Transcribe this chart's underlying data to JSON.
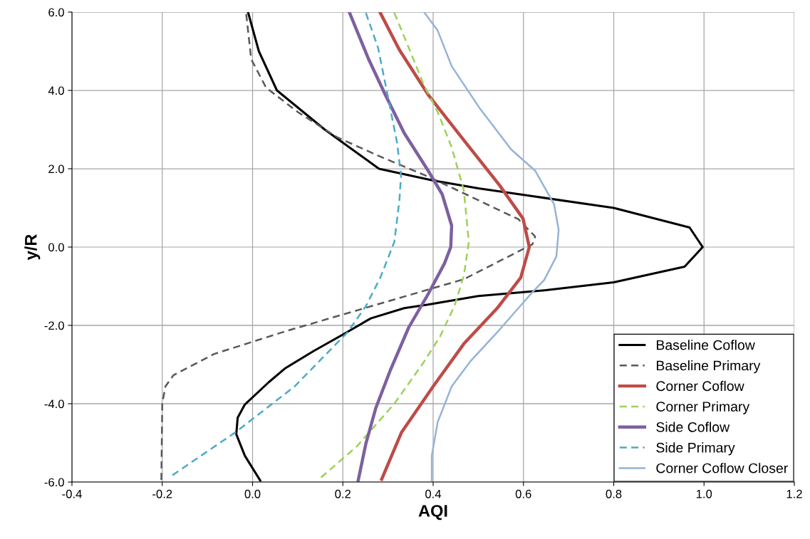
{
  "chart_data": {
    "type": "line",
    "xlabel": "AQI",
    "ylabel": "y/R",
    "xlim": [
      -0.4,
      1.2
    ],
    "ylim": [
      -6.0,
      6.0
    ],
    "xticks": [
      {
        "value": -0.4,
        "label": "-0.4"
      },
      {
        "value": -0.2,
        "label": "-0.2"
      },
      {
        "value": 0,
        "label": "0.0"
      },
      {
        "value": 0.2,
        "label": "0.2"
      },
      {
        "value": 0.4,
        "label": "0.4"
      },
      {
        "value": 0.6,
        "label": "0.6"
      },
      {
        "value": 0.8,
        "label": "0.8"
      },
      {
        "value": 1.0,
        "label": "1.0"
      },
      {
        "value": 1.2,
        "label": "1.2"
      }
    ],
    "yticks": [
      {
        "value": -6,
        "label": "-6.0"
      },
      {
        "value": -4,
        "label": "-4.0"
      },
      {
        "value": -2,
        "label": "-2.0"
      },
      {
        "value": 0,
        "label": "0.0"
      },
      {
        "value": 2,
        "label": "2.0"
      },
      {
        "value": 4,
        "label": "4.0"
      },
      {
        "value": 6,
        "label": "6.0"
      }
    ],
    "grid": true,
    "legend": "bottom right",
    "marker": "none",
    "series": [
      {
        "name": "Baseline Coflow",
        "color": "#000000",
        "line_style": "solid",
        "x": [
          -0.01,
          0.014,
          0.054,
          0.16,
          0.28,
          0.4,
          0.5,
          0.62,
          0.8,
          0.968,
          0.997,
          0.957,
          0.8,
          0.65,
          0.5,
          0.389,
          0.336,
          0.262,
          0.199,
          0.136,
          0.073,
          0.036,
          -0.017,
          -0.033,
          -0.036,
          -0.017,
          0.017
        ],
        "values": [
          6.0,
          5.0,
          4.0,
          3.0,
          2.0,
          1.7,
          1.5,
          1.3,
          1.0,
          0.5,
          0.0,
          -0.5,
          -0.9,
          -1.1,
          -1.25,
          -1.47,
          -1.56,
          -1.82,
          -2.24,
          -2.65,
          -3.09,
          -3.45,
          -4.02,
          -4.36,
          -4.78,
          -5.33,
          -5.96
        ]
      },
      {
        "name": "Baseline Primary",
        "color": "#595959",
        "line_style": "dashed",
        "x": [
          -0.014,
          -0.003,
          0.03,
          0.1,
          0.188,
          0.283,
          0.389,
          0.472,
          0.589,
          0.626,
          0.62,
          0.468,
          0.251,
          0.073,
          -0.085,
          -0.175,
          -0.193,
          -0.2,
          -0.202
        ],
        "values": [
          5.95,
          4.8,
          4.07,
          3.45,
          2.8,
          2.31,
          1.8,
          1.35,
          0.71,
          0.27,
          0.07,
          -0.82,
          -1.55,
          -2.15,
          -2.73,
          -3.27,
          -3.56,
          -4.0,
          -5.96
        ]
      },
      {
        "name": "Corner Coflow",
        "color": "#be4b48",
        "line_style": "solid",
        "x": [
          0.283,
          0.325,
          0.389,
          0.468,
          0.547,
          0.599,
          0.613,
          0.594,
          0.542,
          0.468,
          0.4,
          0.33,
          0.286
        ],
        "values": [
          5.98,
          5.04,
          3.89,
          2.73,
          1.58,
          0.73,
          0.0,
          -0.78,
          -1.56,
          -2.47,
          -3.56,
          -4.73,
          -5.93
        ]
      },
      {
        "name": "Corner Primary",
        "color": "#9bd25a",
        "line_style": "dashed",
        "x": [
          0.314,
          0.346,
          0.378,
          0.41,
          0.441,
          0.468,
          0.479,
          0.468,
          0.447,
          0.415,
          0.378,
          0.314,
          0.231,
          0.147
        ],
        "values": [
          5.98,
          5.09,
          4.18,
          3.45,
          2.55,
          1.45,
          0.13,
          -0.73,
          -1.51,
          -2.29,
          -2.96,
          -4.0,
          -5.09,
          -5.93
        ]
      },
      {
        "name": "Side Coflow",
        "color": "#7d60a0",
        "line_style": "solid",
        "x": [
          0.215,
          0.257,
          0.294,
          0.336,
          0.389,
          0.42,
          0.441,
          0.439,
          0.425,
          0.389,
          0.346,
          0.305,
          0.273,
          0.251,
          0.234
        ],
        "values": [
          5.98,
          4.8,
          3.89,
          2.91,
          1.95,
          1.35,
          0.55,
          0.0,
          -0.42,
          -1.2,
          -2.05,
          -3.15,
          -4.11,
          -5.02,
          -5.96
        ]
      },
      {
        "name": "Side Primary",
        "color": "#4bacc6",
        "line_style": "dashed",
        "x": [
          0.251,
          0.278,
          0.299,
          0.32,
          0.329,
          0.325,
          0.314,
          0.283,
          0.251,
          0.21,
          0.093,
          -0.038,
          -0.183
        ],
        "values": [
          5.98,
          5.09,
          3.89,
          2.67,
          1.82,
          1.16,
          0.13,
          -0.78,
          -1.51,
          -2.18,
          -3.56,
          -4.73,
          -5.87
        ]
      },
      {
        "name": "Corner Coflow Closer",
        "color": "#95b3d7",
        "line_style": "solid",
        "x": [
          0.381,
          0.41,
          0.441,
          0.504,
          0.573,
          0.626,
          0.668,
          0.678,
          0.673,
          0.646,
          0.62,
          0.547,
          0.483,
          0.441,
          0.41,
          0.397,
          0.397
        ],
        "values": [
          5.98,
          5.53,
          4.62,
          3.53,
          2.49,
          1.95,
          1.09,
          0.44,
          -0.24,
          -0.84,
          -1.15,
          -2.11,
          -2.91,
          -3.56,
          -4.47,
          -5.33,
          -5.96
        ]
      }
    ]
  }
}
